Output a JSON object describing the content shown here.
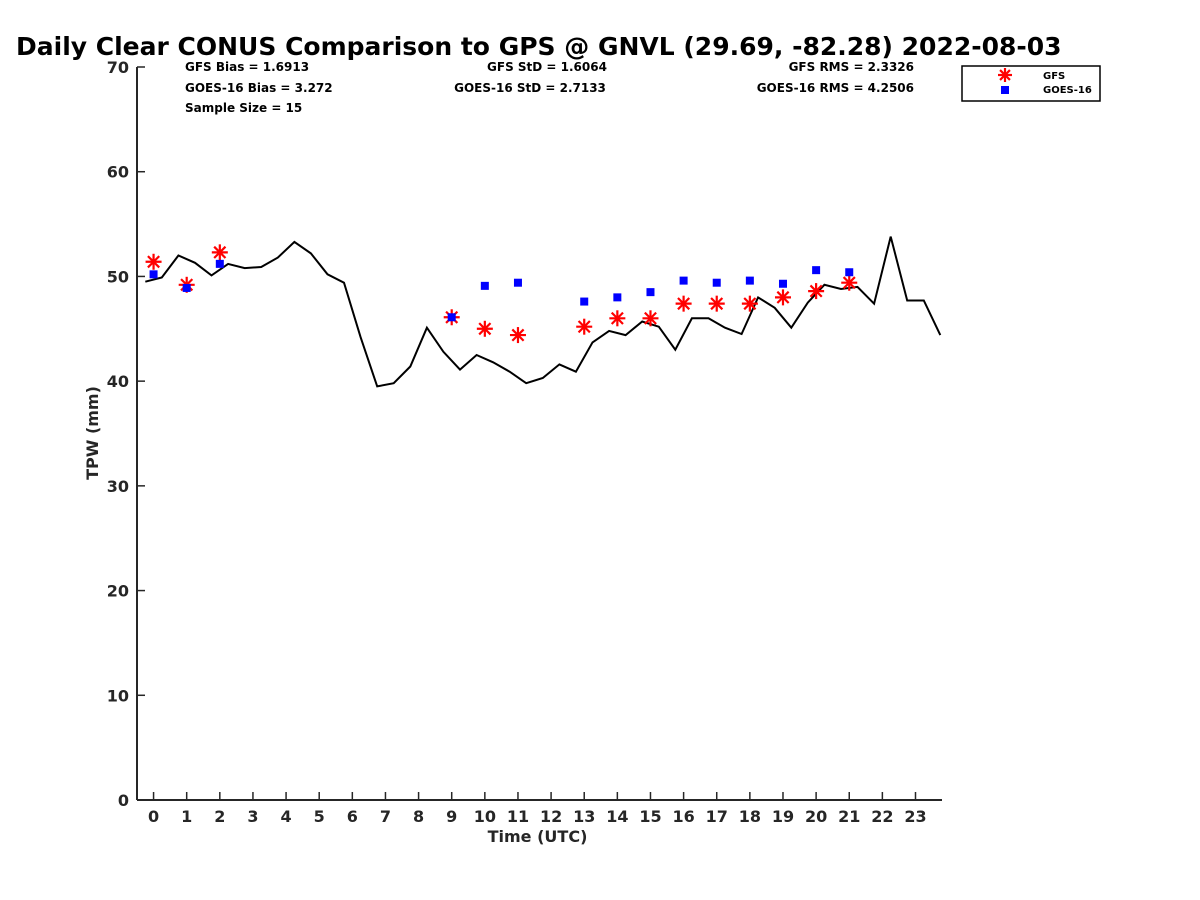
{
  "chart_data": {
    "type": "line",
    "title": "Daily Clear CONUS Comparison to GPS @ GNVL (29.69, -82.28) 2022-08-03",
    "xlabel": "Time (UTC)",
    "ylabel": "TPW (mm)",
    "xlim": [
      -0.5,
      23.8
    ],
    "ylim": [
      0,
      70
    ],
    "x_ticks": [
      "0",
      "1",
      "2",
      "3",
      "4",
      "5",
      "6",
      "7",
      "8",
      "9",
      "10",
      "11",
      "12",
      "13",
      "14",
      "15",
      "16",
      "17",
      "18",
      "19",
      "20",
      "21",
      "22",
      "23"
    ],
    "y_ticks": [
      "0",
      "10",
      "20",
      "30",
      "40",
      "50",
      "60",
      "70"
    ],
    "grid": false,
    "legend_position": "top-right",
    "legend": [
      "GFS",
      "GOES-16"
    ],
    "stats": {
      "gfs_bias": "GFS Bias = 1.6913",
      "goes_bias": "GOES-16 Bias = 3.272",
      "sample_size": "Sample Size = 15",
      "gfs_std": "GFS StD = 1.6064",
      "goes_std": "GOES-16 StD = 2.7133",
      "gfs_rms": "GFS RMS = 2.3326",
      "goes_rms": "GOES-16 RMS = 4.2506"
    },
    "series": [
      {
        "kind": "line",
        "color": "#000000",
        "x": [
          -0.25,
          0.25,
          0.75,
          1.25,
          1.75,
          2.25,
          2.75,
          3.25,
          3.75,
          4.25,
          4.75,
          5.25,
          5.75,
          6.25,
          6.75,
          7.25,
          7.75,
          8.25,
          8.75,
          9.25,
          9.75,
          10.25,
          10.75,
          11.25,
          11.75,
          12.25,
          12.75,
          13.25,
          13.75,
          14.25,
          14.75,
          15.25,
          15.75,
          16.25,
          16.75,
          17.25,
          17.75,
          18.25,
          18.75,
          19.25,
          19.75,
          20.25,
          20.75,
          21.25,
          21.75,
          22.25,
          22.75,
          23.25,
          23.75
        ],
        "values": [
          49.5,
          49.9,
          52.0,
          51.3,
          50.1,
          51.2,
          50.8,
          50.9,
          51.8,
          53.3,
          52.2,
          50.2,
          49.4,
          44.2,
          39.5,
          39.8,
          41.4,
          45.1,
          42.8,
          41.1,
          42.5,
          41.8,
          40.9,
          39.8,
          40.3,
          41.6,
          40.9,
          43.7,
          44.8,
          44.4,
          45.7,
          45.2,
          43.0,
          46.0,
          46.0,
          45.1,
          44.5,
          48.0,
          47.0,
          45.1,
          47.5,
          49.2,
          48.8,
          49.0,
          47.4,
          53.8,
          47.7,
          47.7,
          44.4
        ]
      },
      {
        "kind": "scatter",
        "name": "GFS",
        "marker": "asterisk",
        "color": "#ff0000",
        "x": [
          0,
          1,
          2,
          9,
          10,
          11,
          13,
          14,
          15,
          16,
          17,
          18,
          19,
          20,
          21
        ],
        "values": [
          51.4,
          49.2,
          52.3,
          46.1,
          45.0,
          44.4,
          45.2,
          46.0,
          46.0,
          47.4,
          47.4,
          47.4,
          48.0,
          48.6,
          49.4
        ]
      },
      {
        "kind": "scatter",
        "name": "GOES-16",
        "marker": "square",
        "color": "#0000ff",
        "x": [
          0,
          1,
          2,
          9,
          10,
          11,
          13,
          14,
          15,
          16,
          17,
          18,
          19,
          20,
          21
        ],
        "values": [
          50.2,
          48.9,
          51.2,
          46.1,
          49.1,
          49.4,
          47.6,
          48.0,
          48.5,
          49.6,
          49.4,
          49.6,
          49.3,
          50.6,
          50.4
        ]
      }
    ]
  }
}
